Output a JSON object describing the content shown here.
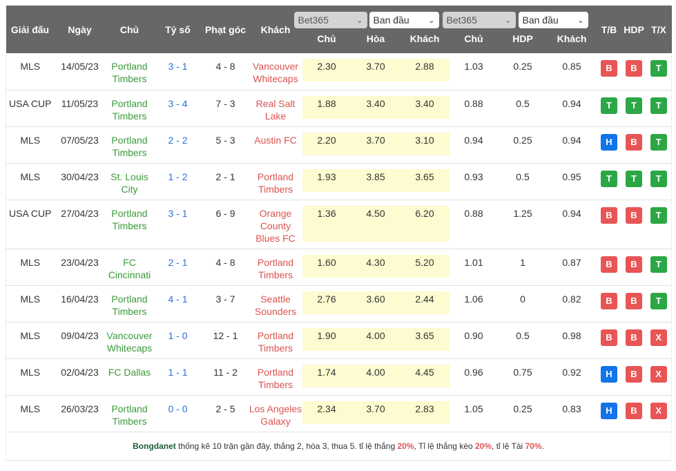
{
  "header": {
    "league": "Giải đấu",
    "date": "Ngày",
    "home": "Chủ",
    "score": "Tỷ số",
    "corners": "Phạt góc",
    "away": "Khách",
    "odds1_bookmaker": "Bet365",
    "odds1_type": "Ban đầu",
    "odds2_bookmaker": "Bet365",
    "odds2_type": "Ban đầu",
    "o1_home": "Chủ",
    "o1_draw": "Hòa",
    "o1_away": "Khách",
    "o2_home": "Chủ",
    "o2_hdp": "HDP",
    "o2_away": "Khách",
    "tb": "T/B",
    "hdp": "HDP",
    "tx": "T/X"
  },
  "colors": {
    "header_bg": "#676767",
    "home": "#3a9a3a",
    "away": "#d9534f",
    "score": "#2b6fd6",
    "odds_bg": "#fdfbd0",
    "badge_B": "#e85555",
    "badge_X": "#e85555",
    "badge_T": "#2ca745",
    "badge_H": "#1273ea"
  },
  "rows": [
    {
      "league": "MLS",
      "date": "14/05/23",
      "home": "Portland Timbers",
      "score": "3 - 1",
      "corners": "4 - 8",
      "away": "Vancouver Whitecaps",
      "o1": [
        "2.30",
        "3.70",
        "2.88"
      ],
      "o2": [
        "1.03",
        "0.25",
        "0.85"
      ],
      "badges": [
        "B",
        "B",
        "T"
      ]
    },
    {
      "league": "USA CUP",
      "date": "11/05/23",
      "home": "Portland Timbers",
      "score": "3 - 4",
      "corners": "7 - 3",
      "away": "Real Salt Lake",
      "o1": [
        "1.88",
        "3.40",
        "3.40"
      ],
      "o2": [
        "0.88",
        "0.5",
        "0.94"
      ],
      "badges": [
        "T",
        "T",
        "T"
      ]
    },
    {
      "league": "MLS",
      "date": "07/05/23",
      "home": "Portland Timbers",
      "score": "2 - 2",
      "corners": "5 - 3",
      "away": "Austin FC",
      "o1": [
        "2.20",
        "3.70",
        "3.10"
      ],
      "o2": [
        "0.94",
        "0.25",
        "0.94"
      ],
      "badges": [
        "H",
        "B",
        "T"
      ]
    },
    {
      "league": "MLS",
      "date": "30/04/23",
      "home": "St. Louis City",
      "score": "1 - 2",
      "corners": "2 - 1",
      "away": "Portland Timbers",
      "o1": [
        "1.93",
        "3.85",
        "3.65"
      ],
      "o2": [
        "0.93",
        "0.5",
        "0.95"
      ],
      "badges": [
        "T",
        "T",
        "T"
      ]
    },
    {
      "league": "USA CUP",
      "date": "27/04/23",
      "home": "Portland Timbers",
      "score": "3 - 1",
      "corners": "6 - 9",
      "away": "Orange County Blues FC",
      "o1": [
        "1.36",
        "4.50",
        "6.20"
      ],
      "o2": [
        "0.88",
        "1.25",
        "0.94"
      ],
      "badges": [
        "B",
        "B",
        "T"
      ]
    },
    {
      "league": "MLS",
      "date": "23/04/23",
      "home": "FC Cincinnati",
      "score": "2 - 1",
      "corners": "4 - 8",
      "away": "Portland Timbers",
      "o1": [
        "1.60",
        "4.30",
        "5.20"
      ],
      "o2": [
        "1.01",
        "1",
        "0.87"
      ],
      "badges": [
        "B",
        "B",
        "T"
      ]
    },
    {
      "league": "MLS",
      "date": "16/04/23",
      "home": "Portland Timbers",
      "score": "4 - 1",
      "corners": "3 - 7",
      "away": "Seattle Sounders",
      "o1": [
        "2.76",
        "3.60",
        "2.44"
      ],
      "o2": [
        "1.06",
        "0",
        "0.82"
      ],
      "badges": [
        "B",
        "B",
        "T"
      ]
    },
    {
      "league": "MLS",
      "date": "09/04/23",
      "home": "Vancouver Whitecaps",
      "score": "1 - 0",
      "corners": "12 - 1",
      "away": "Portland Timbers",
      "o1": [
        "1.90",
        "4.00",
        "3.65"
      ],
      "o2": [
        "0.90",
        "0.5",
        "0.98"
      ],
      "badges": [
        "B",
        "B",
        "X"
      ]
    },
    {
      "league": "MLS",
      "date": "02/04/23",
      "home": "FC Dallas",
      "score": "1 - 1",
      "corners": "11 - 2",
      "away": "Portland Timbers",
      "o1": [
        "1.74",
        "4.00",
        "4.45"
      ],
      "o2": [
        "0.96",
        "0.75",
        "0.92"
      ],
      "badges": [
        "H",
        "B",
        "X"
      ]
    },
    {
      "league": "MLS",
      "date": "26/03/23",
      "home": "Portland Timbers",
      "score": "0 - 0",
      "corners": "2 - 5",
      "away": "Los Angeles Galaxy",
      "o1": [
        "2.34",
        "3.70",
        "2.83"
      ],
      "o2": [
        "1.05",
        "0.25",
        "0.83"
      ],
      "badges": [
        "H",
        "B",
        "X"
      ]
    }
  ],
  "footer": {
    "brand": "Bongdanet",
    "text1": " thống kê 10 trận gần đây, thắng 2, hòa 3, thua 5. tỉ lệ thắng ",
    "win_rate": "20%",
    "text2": ", Tỉ lệ thắng kèo ",
    "handicap_win_rate": "20%",
    "text3": ", tỉ lệ Tài ",
    "over_rate": "70%",
    "text4": "."
  }
}
